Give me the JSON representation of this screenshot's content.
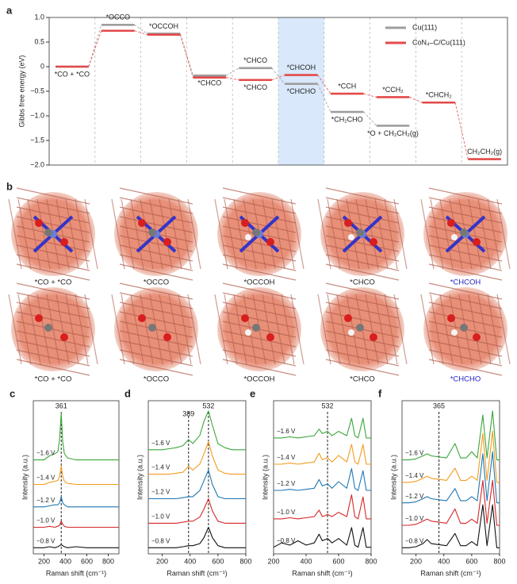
{
  "chart_data": [
    {
      "panel": "a",
      "type": "step",
      "ylabel": "Gibbs free energy (eV)",
      "ylim": [
        -2,
        1
      ],
      "yticks": [
        {
          "value": 1,
          "label": "1.0"
        },
        {
          "value": 0.5,
          "label": "0.5"
        },
        0,
        {
          "value": -0.5,
          "label": "−0.5"
        },
        {
          "value": -1,
          "label": "−1.0"
        },
        {
          "value": -1.5,
          "label": "−1.5"
        },
        {
          "value": -2,
          "label": "−2.0"
        }
      ],
      "series": [
        {
          "name": "Cu(111)",
          "color": "#9e9e9e",
          "values": [
            0,
            0.85,
            0.67,
            -0.18,
            -0.03,
            -0.35,
            -0.92,
            -1.2,
            null,
            null
          ],
          "labels": [
            "*CO + *CO",
            "*OCCO",
            "*OCCOH",
            "*CHCO",
            "*CHCO",
            "*CHCHO",
            "*CH₂CHO",
            "*O + CH₂CH₂(g)",
            null,
            null
          ]
        },
        {
          "name": "CoN₄–C/Cu(111)",
          "color": "#e34a4a",
          "values": [
            0,
            0.73,
            0.65,
            -0.22,
            -0.27,
            -0.17,
            -0.55,
            -0.62,
            -0.73,
            -1.88
          ],
          "labels": [
            null,
            null,
            null,
            null,
            "*CHCO",
            "*CHCOH",
            "*CCH",
            "*CCH₂",
            "*CHCH₂",
            "CH₂CH₂(g)"
          ]
        }
      ]
    },
    {
      "panel": "c",
      "type": "line",
      "xlabel": "Raman shift (cm⁻¹)",
      "ylabel": "Intensity (a.u.)",
      "x": [
        100,
        150,
        200,
        250,
        300,
        330,
        345,
        361,
        375,
        390,
        420,
        500,
        600,
        700,
        800,
        900
      ],
      "xlim": [
        100,
        900
      ],
      "xticks": [
        200,
        400,
        600,
        800
      ],
      "ylim": [
        0,
        7.5
      ],
      "markers": [
        361
      ],
      "series": [
        {
          "name": "−0.8 V",
          "color": "#111111",
          "values": [
            0.3,
            0.3,
            0.3,
            0.35,
            0.3,
            0.35,
            0.4,
            0.45,
            0.4,
            0.35,
            0.3,
            0.35,
            0.3,
            0.3,
            0.3,
            0.3
          ]
        },
        {
          "name": "−1.0 V",
          "color": "#d62728",
          "values": [
            1.3,
            1.3,
            1.3,
            1.35,
            1.3,
            1.35,
            1.4,
            1.6,
            1.45,
            1.35,
            1.3,
            1.3,
            1.3,
            1.3,
            1.3,
            1.3
          ]
        },
        {
          "name": "−1.2 V",
          "color": "#1f77b4",
          "values": [
            2.3,
            2.3,
            2.3,
            2.35,
            2.4,
            2.4,
            2.5,
            2.8,
            2.5,
            2.4,
            2.3,
            2.3,
            2.3,
            2.3,
            2.3,
            2.3
          ]
        },
        {
          "name": "−1.4 V",
          "color": "#f39c1f",
          "values": [
            3.4,
            3.4,
            3.4,
            3.5,
            3.55,
            3.6,
            3.8,
            4.3,
            3.8,
            3.55,
            3.45,
            3.4,
            3.4,
            3.4,
            3.4,
            3.4
          ]
        },
        {
          "name": "−1.6 V",
          "color": "#3aa63a",
          "values": [
            4.6,
            4.6,
            4.6,
            4.8,
            4.9,
            5.0,
            5.6,
            6.9,
            5.5,
            4.9,
            4.7,
            4.6,
            4.6,
            4.6,
            4.6,
            4.6
          ]
        }
      ]
    },
    {
      "panel": "d",
      "type": "line",
      "xlabel": "Raman shift (cm⁻¹)",
      "ylabel": "Intensity (a.u.)",
      "x": [
        100,
        150,
        200,
        250,
        300,
        350,
        389,
        420,
        470,
        500,
        532,
        560,
        600,
        650,
        700,
        800
      ],
      "xlim": [
        100,
        800
      ],
      "xticks": [
        200,
        400,
        600,
        800
      ],
      "ylim": [
        0,
        7.5
      ],
      "markers": [
        389,
        532
      ],
      "series": [
        {
          "name": "−0.8 V",
          "color": "#111111",
          "values": [
            0.3,
            0.3,
            0.3,
            0.3,
            0.3,
            0.35,
            0.4,
            0.4,
            0.5,
            0.8,
            1.3,
            0.8,
            0.4,
            0.3,
            0.3,
            0.3
          ]
        },
        {
          "name": "−1.0 V",
          "color": "#d62728",
          "values": [
            1.5,
            1.5,
            1.5,
            1.5,
            1.5,
            1.55,
            1.6,
            1.6,
            1.8,
            2.2,
            2.7,
            2.1,
            1.6,
            1.5,
            1.5,
            1.5
          ]
        },
        {
          "name": "−1.2 V",
          "color": "#1f77b4",
          "values": [
            2.7,
            2.7,
            2.7,
            2.7,
            2.7,
            2.75,
            2.8,
            2.8,
            3.1,
            3.6,
            4.1,
            3.4,
            2.8,
            2.7,
            2.7,
            2.7
          ]
        },
        {
          "name": "−1.4 V",
          "color": "#f39c1f",
          "values": [
            3.9,
            3.9,
            3.9,
            3.9,
            3.95,
            4.0,
            4.3,
            4.1,
            4.4,
            4.9,
            5.5,
            4.8,
            4.1,
            3.95,
            3.9,
            3.9
          ]
        },
        {
          "name": "−1.6 V",
          "color": "#3aa63a",
          "values": [
            5.1,
            5.1,
            5.1,
            5.15,
            5.2,
            5.3,
            5.6,
            5.4,
            5.8,
            6.5,
            7.0,
            6.3,
            5.4,
            5.2,
            5.1,
            5.1
          ]
        }
      ]
    },
    {
      "panel": "e",
      "type": "line",
      "xlabel": "Raman shift (cm⁻¹)",
      "ylabel": "Intensity (a.u.)",
      "x": [
        200,
        250,
        300,
        350,
        400,
        450,
        480,
        500,
        532,
        560,
        600,
        650,
        680,
        700,
        720,
        750,
        770,
        800
      ],
      "xlim": [
        200,
        800
      ],
      "xticks": [
        200,
        400,
        600,
        800
      ],
      "ylim": [
        0,
        7
      ],
      "markers": [
        532
      ],
      "series": [
        {
          "name": "−0.8 V",
          "color": "#111111",
          "values": [
            0.3,
            0.5,
            0.4,
            0.6,
            0.4,
            0.5,
            0.9,
            0.6,
            0.7,
            0.5,
            0.7,
            0.4,
            1.2,
            0.4,
            0.3,
            1.2,
            0.3,
            0.3
          ]
        },
        {
          "name": "−1.0 V",
          "color": "#d62728",
          "values": [
            1.6,
            1.6,
            1.65,
            1.6,
            1.65,
            1.7,
            2.0,
            1.7,
            1.8,
            1.7,
            1.9,
            1.7,
            2.7,
            1.7,
            1.6,
            2.6,
            1.6,
            1.6
          ]
        },
        {
          "name": "−1.2 V",
          "color": "#1f77b4",
          "values": [
            2.9,
            2.9,
            2.95,
            2.9,
            2.95,
            3.0,
            3.4,
            3.1,
            3.2,
            3.0,
            3.3,
            3.0,
            3.9,
            3.0,
            2.9,
            3.8,
            2.9,
            2.9
          ]
        },
        {
          "name": "−1.4 V",
          "color": "#f39c1f",
          "values": [
            4.1,
            4.1,
            4.15,
            4.1,
            4.15,
            4.2,
            4.6,
            4.3,
            4.4,
            4.2,
            4.5,
            4.2,
            5.0,
            4.2,
            4.1,
            5.0,
            4.1,
            4.1
          ]
        },
        {
          "name": "−1.6 V",
          "color": "#3aa63a",
          "values": [
            5.3,
            5.3,
            5.35,
            5.3,
            5.35,
            5.4,
            5.7,
            5.5,
            5.6,
            5.4,
            5.6,
            5.4,
            6.2,
            5.4,
            5.3,
            6.2,
            5.3,
            5.3
          ]
        }
      ]
    },
    {
      "panel": "f",
      "type": "line",
      "xlabel": "Raman shift (cm⁻¹)",
      "ylabel": "Intensity (a.u.)",
      "x": [
        100,
        150,
        200,
        250,
        280,
        310,
        365,
        420,
        480,
        520,
        560,
        600,
        640,
        680,
        710,
        750,
        780,
        800
      ],
      "xlim": [
        100,
        800
      ],
      "xticks": [
        200,
        400,
        600,
        800
      ],
      "ylim": [
        0,
        7.5
      ],
      "markers": [
        365
      ],
      "series": [
        {
          "name": "−0.8 V",
          "color": "#111111",
          "values": [
            0.3,
            0.3,
            0.35,
            0.5,
            0.7,
            0.5,
            0.45,
            0.4,
            1.0,
            0.4,
            0.4,
            0.6,
            0.4,
            2.4,
            0.4,
            2.4,
            0.3,
            0.3
          ]
        },
        {
          "name": "−1.0 V",
          "color": "#d62728",
          "values": [
            1.4,
            1.4,
            1.45,
            1.6,
            1.7,
            1.6,
            1.55,
            1.5,
            2.2,
            1.5,
            1.5,
            1.7,
            1.5,
            3.6,
            1.5,
            3.6,
            1.4,
            1.4
          ]
        },
        {
          "name": "−1.2 V",
          "color": "#1f77b4",
          "values": [
            2.5,
            2.5,
            2.55,
            2.7,
            2.8,
            2.7,
            2.65,
            2.6,
            3.2,
            2.6,
            2.6,
            2.8,
            2.6,
            4.9,
            2.6,
            5.0,
            2.5,
            2.5
          ]
        },
        {
          "name": "−1.4 V",
          "color": "#f39c1f",
          "values": [
            3.5,
            3.5,
            3.55,
            3.7,
            3.8,
            3.7,
            3.65,
            3.6,
            4.2,
            3.6,
            3.6,
            3.8,
            3.6,
            5.9,
            3.6,
            6.0,
            3.5,
            3.5
          ]
        },
        {
          "name": "−1.6 V",
          "color": "#3aa63a",
          "values": [
            4.6,
            4.6,
            4.65,
            4.8,
            4.9,
            4.8,
            4.75,
            4.7,
            5.4,
            4.7,
            4.7,
            5.0,
            4.7,
            6.8,
            4.7,
            7.0,
            4.6,
            4.6
          ]
        }
      ]
    }
  ],
  "structures": {
    "panel": "b",
    "labels": [
      [
        "*CO + *CO",
        "*OCCO",
        "*OCCOH",
        "*CHCO",
        "*CHCOH"
      ],
      [
        "*CO + *CO",
        "*OCCO",
        "*OCCOH",
        "*CHCO",
        "*CHCHO"
      ]
    ]
  }
}
